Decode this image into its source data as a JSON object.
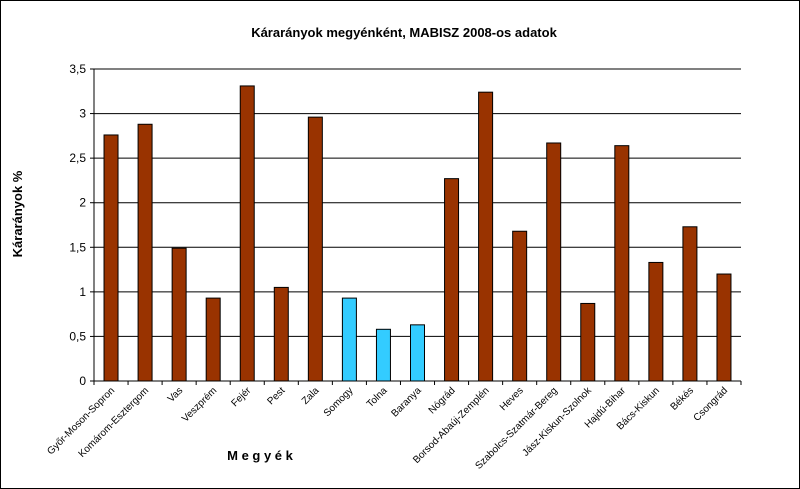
{
  "chart_data": {
    "type": "bar",
    "title": "Kárarányok megyénként, MABISZ 2008-os adatok",
    "xlabel": "M e g y é k",
    "ylabel": "Kárarányok %",
    "ylim": [
      0,
      3.5
    ],
    "yticks": [
      "0",
      "0,5",
      "1",
      "1,5",
      "2",
      "2,5",
      "3",
      "3,5"
    ],
    "ytick_values": [
      0,
      0.5,
      1,
      1.5,
      2,
      2.5,
      3,
      3.5
    ],
    "grid": true,
    "legend": "none",
    "categories": [
      "Győr-Moson-Sopron",
      "Komárom-Esztergom",
      "Vas",
      "Veszprém",
      "Fejér",
      "Pest",
      "Zala",
      "Somogy",
      "Tolna",
      "Baranya",
      "Nógrád",
      "Borsod-Abaúj-Zemplén",
      "Heves",
      "Szabolcs-Szatmár-Bereg",
      "Jász-Kiskun-Szolnok",
      "Hajdú-Bihar",
      "Bács-Kiskun",
      "Békés",
      "Csongrád"
    ],
    "values": [
      2.76,
      2.88,
      1.49,
      0.93,
      3.31,
      1.05,
      2.96,
      0.93,
      0.58,
      0.63,
      2.27,
      3.24,
      1.68,
      2.67,
      0.87,
      2.64,
      1.33,
      1.73,
      1.2
    ],
    "highlighted": [
      "Somogy",
      "Tolna",
      "Baranya"
    ],
    "colors": {
      "bar": "#993300",
      "highlight": "#33CCFF",
      "outline": "#000000",
      "grid": "#000000"
    }
  }
}
